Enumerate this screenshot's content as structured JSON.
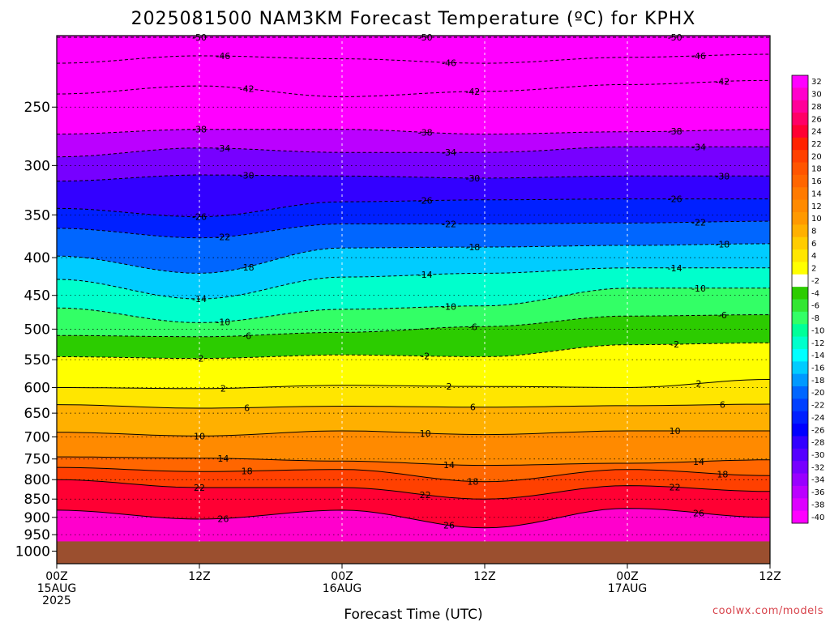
{
  "chart_data": {
    "type": "heatmap",
    "title": "2025081500 NAM3KM Forecast Temperature (ºC) for KPHX",
    "xlabel": "Forecast Time (UTC)",
    "ylabel": "",
    "x_ticks": [
      {
        "hour": 0,
        "lines": [
          "00Z",
          "15AUG",
          "2025"
        ]
      },
      {
        "hour": 12,
        "lines": [
          "12Z"
        ]
      },
      {
        "hour": 24,
        "lines": [
          "00Z",
          "16AUG"
        ]
      },
      {
        "hour": 36,
        "lines": [
          "12Z"
        ]
      },
      {
        "hour": 48,
        "lines": [
          "00Z",
          "17AUG"
        ]
      },
      {
        "hour": 60,
        "lines": [
          "12Z"
        ]
      }
    ],
    "xlim": [
      0,
      60
    ],
    "ylim": [
      1040,
      200
    ],
    "y_scale": "log",
    "y_ticks": [
      250,
      300,
      350,
      400,
      450,
      500,
      550,
      600,
      650,
      700,
      750,
      800,
      850,
      900,
      950,
      1000
    ],
    "surface_pressure_hPa": 970,
    "grid": true,
    "colorbar": {
      "position": "right",
      "labels": [
        "32",
        "30",
        "28",
        "26",
        "24",
        "22",
        "20",
        "18",
        "16",
        "14",
        "12",
        "10",
        "8",
        "6",
        "4",
        "2",
        "-2",
        "-4",
        "-6",
        "-8",
        "-10",
        "-12",
        "-14",
        "-16",
        "-18",
        "-20",
        "-22",
        "-24",
        "-26",
        "-28",
        "-30",
        "-32",
        "-34",
        "-36",
        "-38",
        "-40"
      ],
      "colors": [
        "#ff00ff",
        "#ff00cc",
        "#ff0099",
        "#ff0066",
        "#ff0033",
        "#ff2200",
        "#ff4000",
        "#ff5500",
        "#ff6600",
        "#ff7a00",
        "#ff8a00",
        "#ff9900",
        "#ffb000",
        "#ffcc00",
        "#ffe600",
        "#ffff00",
        "#ffffff",
        "#2ccc00",
        "#33e633",
        "#33ff66",
        "#00ff99",
        "#00ffcc",
        "#00ffff",
        "#00ccff",
        "#0099ff",
        "#0066ff",
        "#0040ff",
        "#0020ff",
        "#0000ff",
        "#3300ff",
        "#5500ff",
        "#7700ff",
        "#9900ff",
        "#bb00ff",
        "#dd00ff",
        "#ff00ff"
      ]
    },
    "isotherms": [
      {
        "temp": -50,
        "label": "-50",
        "p": [
          [
            0,
            201
          ],
          [
            20,
            201
          ],
          [
            40,
            201
          ],
          [
            60,
            201
          ]
        ]
      },
      {
        "temp": -46,
        "label": "-46",
        "p": [
          [
            0,
            218
          ],
          [
            12,
            213
          ],
          [
            24,
            215
          ],
          [
            36,
            218
          ],
          [
            48,
            214
          ],
          [
            60,
            212
          ]
        ]
      },
      {
        "temp": -42,
        "label": "-42",
        "p": [
          [
            0,
            240
          ],
          [
            12,
            234
          ],
          [
            24,
            242
          ],
          [
            36,
            238
          ],
          [
            48,
            233
          ],
          [
            60,
            230
          ]
        ]
      },
      {
        "temp": -38,
        "label": "-38",
        "p": [
          [
            0,
            272
          ],
          [
            12,
            268
          ],
          [
            24,
            268
          ],
          [
            36,
            272
          ],
          [
            48,
            270
          ],
          [
            60,
            268
          ]
        ]
      },
      {
        "temp": -34,
        "label": "-34",
        "p": [
          [
            0,
            292
          ],
          [
            12,
            284
          ],
          [
            24,
            288
          ],
          [
            36,
            288
          ],
          [
            48,
            283
          ],
          [
            60,
            283
          ]
        ]
      },
      {
        "temp": -30,
        "label": "-30",
        "p": [
          [
            0,
            315
          ],
          [
            12,
            309
          ],
          [
            24,
            310
          ],
          [
            36,
            312
          ],
          [
            48,
            310
          ],
          [
            60,
            310
          ]
        ]
      },
      {
        "temp": -26,
        "label": "-26",
        "p": [
          [
            0,
            343
          ],
          [
            12,
            352
          ],
          [
            24,
            336
          ],
          [
            36,
            334
          ],
          [
            48,
            333
          ],
          [
            60,
            333
          ]
        ]
      },
      {
        "temp": -22,
        "label": "-22",
        "p": [
          [
            0,
            365
          ],
          [
            12,
            376
          ],
          [
            24,
            360
          ],
          [
            36,
            360
          ],
          [
            48,
            359
          ],
          [
            60,
            357
          ]
        ]
      },
      {
        "temp": -18,
        "label": "-18",
        "p": [
          [
            0,
            398
          ],
          [
            12,
            420
          ],
          [
            24,
            388
          ],
          [
            36,
            387
          ],
          [
            48,
            385
          ],
          [
            60,
            383
          ]
        ]
      },
      {
        "temp": -14,
        "label": "-14",
        "p": [
          [
            0,
            428
          ],
          [
            12,
            455
          ],
          [
            24,
            425
          ],
          [
            36,
            420
          ],
          [
            48,
            413
          ],
          [
            60,
            413
          ]
        ]
      },
      {
        "temp": -10,
        "label": "-10",
        "p": [
          [
            0,
            468
          ],
          [
            12,
            490
          ],
          [
            24,
            470
          ],
          [
            36,
            465
          ],
          [
            48,
            440
          ],
          [
            60,
            440
          ]
        ]
      },
      {
        "temp": -6,
        "label": "-6",
        "p": [
          [
            0,
            510
          ],
          [
            12,
            512
          ],
          [
            24,
            505
          ],
          [
            36,
            496
          ],
          [
            48,
            480
          ],
          [
            60,
            478
          ]
        ]
      },
      {
        "temp": -2,
        "label": "-2",
        "p": [
          [
            0,
            545
          ],
          [
            12,
            548
          ],
          [
            24,
            542
          ],
          [
            36,
            545
          ],
          [
            48,
            525
          ],
          [
            60,
            522
          ]
        ]
      },
      {
        "temp": 2,
        "label": "2",
        "p": [
          [
            0,
            600
          ],
          [
            12,
            602
          ],
          [
            24,
            596
          ],
          [
            36,
            598
          ],
          [
            48,
            600
          ],
          [
            60,
            585
          ]
        ]
      },
      {
        "temp": 6,
        "label": "6",
        "p": [
          [
            0,
            633
          ],
          [
            12,
            640
          ],
          [
            24,
            636
          ],
          [
            36,
            638
          ],
          [
            48,
            635
          ],
          [
            60,
            632
          ]
        ]
      },
      {
        "temp": 10,
        "label": "10",
        "p": [
          [
            0,
            690
          ],
          [
            12,
            698
          ],
          [
            24,
            687
          ],
          [
            36,
            695
          ],
          [
            48,
            687
          ],
          [
            60,
            687
          ]
        ]
      },
      {
        "temp": 14,
        "label": "14",
        "p": [
          [
            0,
            745
          ],
          [
            12,
            748
          ],
          [
            24,
            755
          ],
          [
            36,
            765
          ],
          [
            48,
            760
          ],
          [
            60,
            752
          ]
        ]
      },
      {
        "temp": 18,
        "label": "18",
        "p": [
          [
            0,
            770
          ],
          [
            12,
            780
          ],
          [
            24,
            775
          ],
          [
            36,
            805
          ],
          [
            48,
            775
          ],
          [
            60,
            790
          ]
        ]
      },
      {
        "temp": 22,
        "label": "22",
        "p": [
          [
            0,
            800
          ],
          [
            12,
            820
          ],
          [
            24,
            820
          ],
          [
            36,
            850
          ],
          [
            48,
            815
          ],
          [
            60,
            830
          ]
        ]
      },
      {
        "temp": 26,
        "label": "26",
        "p": [
          [
            0,
            880
          ],
          [
            12,
            905
          ],
          [
            24,
            880
          ],
          [
            36,
            930
          ],
          [
            48,
            875
          ],
          [
            60,
            900
          ]
        ]
      }
    ]
  },
  "credit": "coolwx.com/models"
}
